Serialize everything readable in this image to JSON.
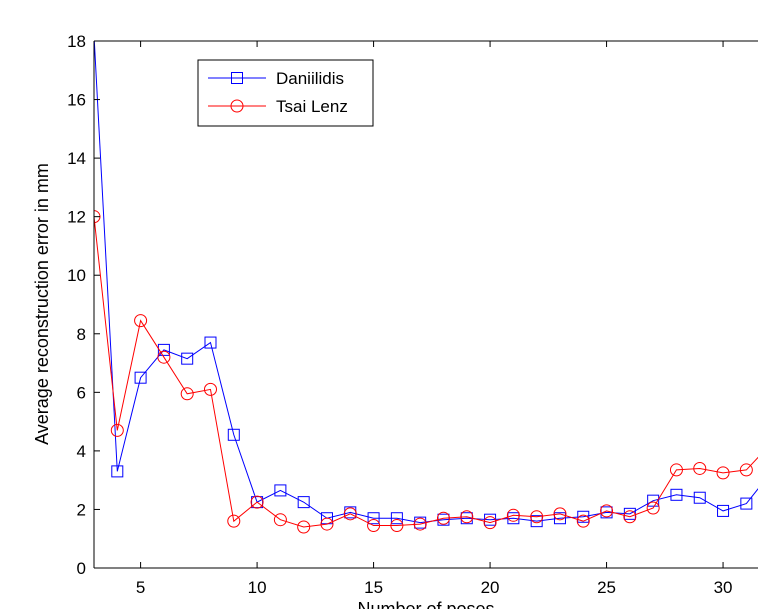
{
  "chart_data": {
    "type": "line",
    "xlabel": "Number of poses",
    "ylabel": "Average reconstruction error in mm",
    "xlim": [
      3,
      31.5
    ],
    "ylim": [
      0,
      18
    ],
    "xticks": [
      5,
      10,
      15,
      20,
      25,
      30
    ],
    "yticks": [
      0,
      2,
      4,
      6,
      8,
      10,
      12,
      14,
      16,
      18
    ],
    "grid": false,
    "legend_position": "top-left",
    "series": [
      {
        "name": "Daniilidis",
        "color": "#0000ff",
        "marker": "square",
        "x": [
          3,
          4,
          5,
          6,
          7,
          8,
          9,
          10,
          11,
          12,
          13,
          14,
          15,
          16,
          17,
          18,
          19,
          20,
          21,
          22,
          23,
          24,
          25,
          26,
          27,
          28,
          29,
          30,
          31,
          32
        ],
        "y": [
          18.2,
          3.3,
          6.5,
          7.45,
          7.15,
          7.7,
          4.55,
          2.25,
          2.65,
          2.25,
          1.7,
          1.9,
          1.7,
          1.7,
          1.55,
          1.65,
          1.7,
          1.65,
          1.7,
          1.6,
          1.7,
          1.75,
          1.9,
          1.85,
          2.3,
          2.5,
          2.4,
          1.95,
          2.2,
          3.2
        ]
      },
      {
        "name": "Tsai Lenz",
        "color": "#ff0000",
        "marker": "circle",
        "x": [
          3,
          4,
          5,
          6,
          7,
          8,
          9,
          10,
          11,
          12,
          13,
          14,
          15,
          16,
          17,
          18,
          19,
          20,
          21,
          22,
          23,
          24,
          25,
          26,
          27,
          28,
          29,
          30,
          31,
          32
        ],
        "y": [
          12.0,
          4.7,
          8.45,
          7.2,
          5.95,
          6.1,
          1.6,
          2.25,
          1.65,
          1.4,
          1.5,
          1.85,
          1.45,
          1.45,
          1.5,
          1.7,
          1.75,
          1.55,
          1.8,
          1.75,
          1.85,
          1.6,
          1.95,
          1.75,
          2.05,
          3.35,
          3.4,
          3.25,
          3.35,
          4.2
        ]
      }
    ]
  }
}
